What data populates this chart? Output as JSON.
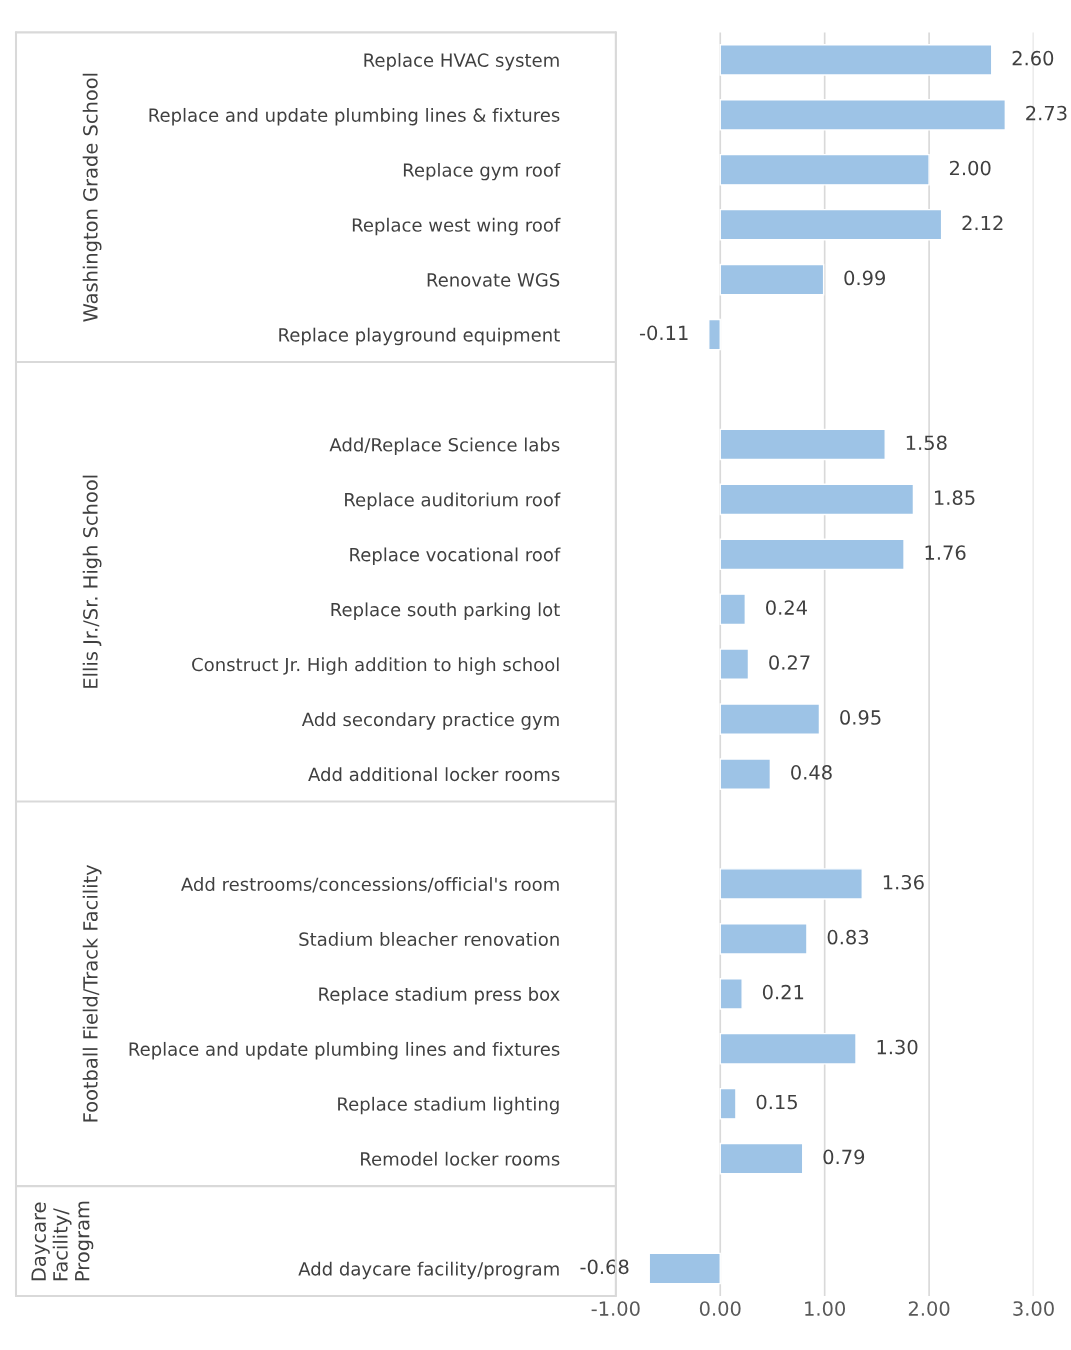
{
  "chart_data": {
    "type": "bar",
    "orientation": "horizontal",
    "categories": [
      "Replace HVAC system",
      "Replace and update plumbing lines & fixtures",
      "Replace gym roof",
      "Replace west wing roof",
      "Renovate WGS",
      "Replace playground equipment",
      null,
      "Add/Replace Science labs",
      "Replace auditorium roof",
      "Replace vocational roof",
      "Replace south parking lot",
      "Construct Jr. High addition to high school",
      "Add secondary practice gym",
      "Add additional locker rooms",
      null,
      "Add restrooms/concessions/official's room",
      "Stadium bleacher renovation",
      "Replace stadium press box",
      "Replace and update plumbing lines and fixtures",
      "Replace stadium lighting",
      "Remodel locker rooms",
      null,
      "Add daycare facility/program"
    ],
    "values": [
      2.6,
      2.73,
      2.0,
      2.12,
      0.99,
      -0.11,
      null,
      1.58,
      1.85,
      1.76,
      0.24,
      0.27,
      0.95,
      0.48,
      null,
      1.36,
      0.83,
      0.21,
      1.3,
      0.15,
      0.79,
      null,
      -0.68
    ],
    "value_labels": [
      "2.60",
      "2.73",
      "2.00",
      "2.12",
      "0.99",
      "-0.11",
      null,
      "1.58",
      "1.85",
      "1.76",
      "0.24",
      "0.27",
      "0.95",
      "0.48",
      null,
      "1.36",
      "0.83",
      "0.21",
      "1.30",
      "0.15",
      "0.79",
      null,
      "-0.68"
    ],
    "color": "#9dc3e6",
    "xlim": [
      -1,
      3
    ],
    "xticks": [
      {
        "value": -1,
        "label": "-1.00"
      },
      {
        "value": 0,
        "label": "0.00"
      },
      {
        "value": 1,
        "label": "1.00"
      },
      {
        "value": 2,
        "label": "2.00"
      },
      {
        "value": 3,
        "label": "3.00"
      }
    ],
    "grid": "x",
    "annotations": [
      "Washington Grade School",
      "Ellis Jr./Sr. High School",
      "Football Field/Track Facility",
      "Daycare\nFacility/\nProgram"
    ]
  }
}
